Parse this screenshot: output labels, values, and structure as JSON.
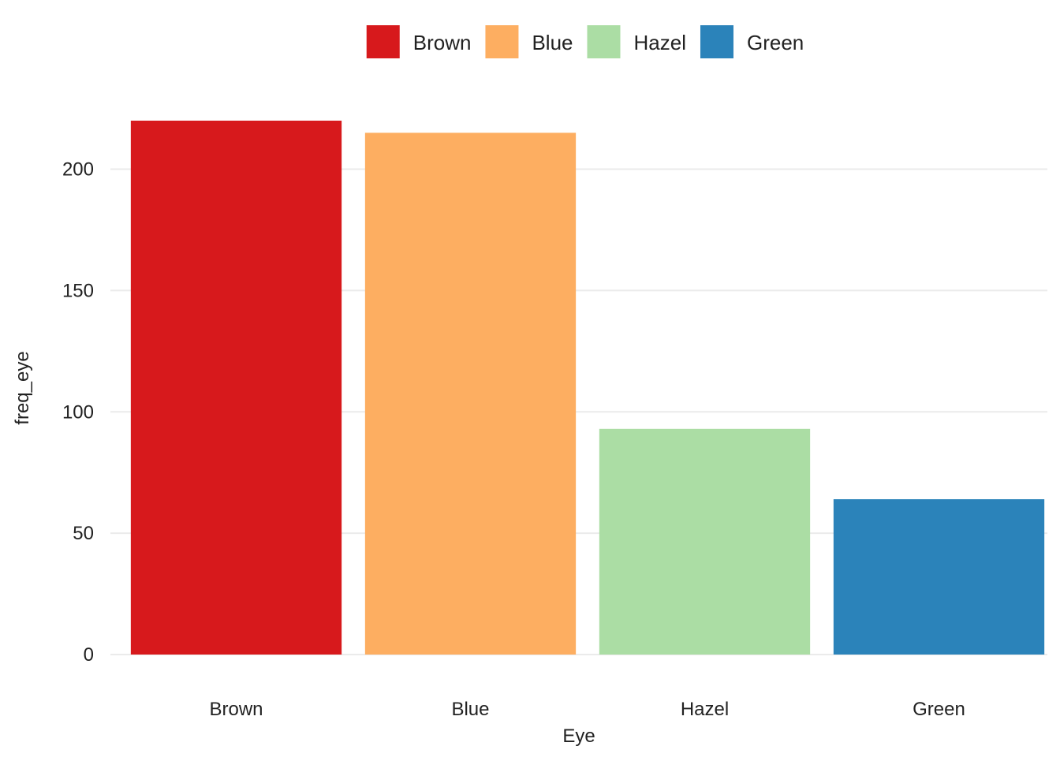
{
  "chart_data": {
    "type": "bar",
    "categories": [
      "Brown",
      "Blue",
      "Hazel",
      "Green"
    ],
    "values": [
      220,
      215,
      93,
      64
    ],
    "colors": [
      "#d7191c",
      "#fdae61",
      "#abdda4",
      "#2b83ba"
    ],
    "xlabel": "Eye",
    "ylabel": "freq_eye",
    "ylim": [
      0,
      220
    ],
    "yticks": [
      0,
      50,
      100,
      150,
      200
    ],
    "grid": true,
    "gridline_color": "#ebebeb",
    "legend": {
      "position": "top",
      "entries": [
        "Brown",
        "Blue",
        "Hazel",
        "Green"
      ]
    }
  }
}
